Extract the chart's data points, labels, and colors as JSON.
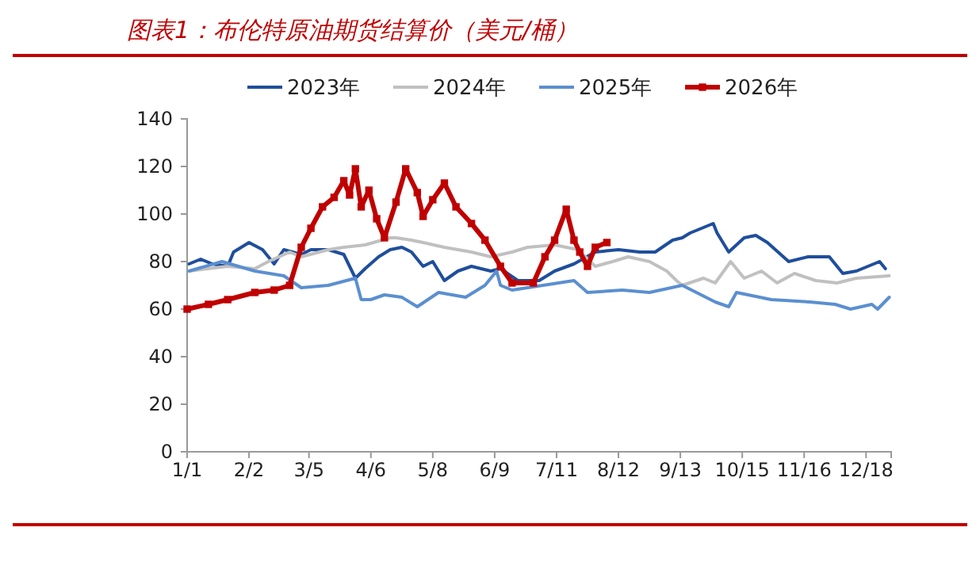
{
  "chart_data": {
    "type": "line",
    "title": "图表1：布伦特原油期货结算价（美元/桶）",
    "legend": "top",
    "grid": false,
    "xlim": [
      "--01-01",
      "--12-31"
    ],
    "xticks": [
      {
        "value": "--01-01",
        "label": "1/1"
      },
      {
        "value": "--02-02",
        "label": "2/2"
      },
      {
        "value": "--03-05",
        "label": "3/5"
      },
      {
        "value": "--04-06",
        "label": "4/6"
      },
      {
        "value": "--05-08",
        "label": "5/8"
      },
      {
        "value": "--06-09",
        "label": "6/9"
      },
      {
        "value": "--07-11",
        "label": "7/11"
      },
      {
        "value": "--08-12",
        "label": "8/12"
      },
      {
        "value": "--09-13",
        "label": "9/13"
      },
      {
        "value": "--10-15",
        "label": "10/15"
      },
      {
        "value": "--11-16",
        "label": "11/16"
      },
      {
        "value": "--12-18",
        "label": "12/18"
      }
    ],
    "ylim": [
      0,
      140
    ],
    "yticks": [
      0,
      20,
      40,
      60,
      80,
      100,
      120,
      140
    ],
    "series": [
      {
        "name": "2023年",
        "color": "#1f4e9c",
        "x": [
          "--01-02",
          "--01-08",
          "--01-14",
          "--01-22",
          "--01-25",
          "--02-02",
          "--02-09",
          "--02-15",
          "--02-20",
          "--03-01",
          "--03-06",
          "--03-15",
          "--03-23",
          "--03-29",
          "--04-03",
          "--04-10",
          "--04-16",
          "--04-22",
          "--04-27",
          "--05-03",
          "--05-08",
          "--05-14",
          "--05-21",
          "--05-28",
          "--06-07",
          "--06-12",
          "--06-21",
          "--07-02",
          "--07-10",
          "--07-20",
          "--07-31",
          "--08-12",
          "--08-23",
          "--08-31",
          "--09-09",
          "--09-14",
          "--09-18",
          "--09-30",
          "--10-02",
          "--10-08",
          "--10-16",
          "--10-22",
          "--10-28",
          "--11-08",
          "--11-18",
          "--11-29",
          "--12-06",
          "--12-13",
          "--12-25",
          "--12-28"
        ],
        "values": [
          79,
          81,
          79,
          78,
          84,
          88,
          85,
          79,
          85,
          83,
          85,
          85,
          83,
          73,
          77,
          82,
          85,
          86,
          84,
          78,
          80,
          72,
          76,
          78,
          76,
          77,
          72,
          72,
          76,
          79,
          84,
          85,
          84,
          84,
          89,
          90,
          92,
          96,
          92,
          84,
          90,
          91,
          88,
          80,
          82,
          82,
          75,
          76,
          80,
          77
        ]
      },
      {
        "name": "2024年",
        "color": "#c0c0c0",
        "x": [
          "--01-02",
          "--01-22",
          "--02-05",
          "--02-12",
          "--02-23",
          "--03-01",
          "--03-15",
          "--03-23",
          "--04-03",
          "--04-16",
          "--04-19",
          "--04-27",
          "--05-03",
          "--05-14",
          "--05-28",
          "--06-07",
          "--06-18",
          "--06-26",
          "--07-10",
          "--07-22",
          "--07-31",
          "--08-09",
          "--08-17",
          "--08-28",
          "--09-06",
          "--09-11",
          "--09-14",
          "--09-25",
          "--10-01",
          "--10-09",
          "--10-16",
          "--10-25",
          "--11-02",
          "--11-11",
          "--11-22",
          "--12-03",
          "--12-13",
          "--12-30"
        ],
        "values": [
          76,
          78,
          77,
          80,
          84,
          82,
          85,
          86,
          87,
          90,
          90,
          89,
          88,
          86,
          84,
          82,
          84,
          86,
          87,
          85,
          78,
          80,
          82,
          80,
          76,
          72,
          70,
          73,
          71,
          80,
          73,
          76,
          71,
          75,
          72,
          71,
          73,
          74
        ]
      },
      {
        "name": "2025年",
        "color": "#5b8fd0",
        "x": [
          "--01-02",
          "--01-19",
          "--02-05",
          "--02-20",
          "--03-01",
          "--03-15",
          "--03-29",
          "--04-01",
          "--04-06",
          "--04-13",
          "--04-22",
          "--04-30",
          "--05-11",
          "--05-25",
          "--06-04",
          "--06-10",
          "--06-12",
          "--06-18",
          "--07-04",
          "--07-20",
          "--07-27",
          "--08-14",
          "--08-28",
          "--09-14",
          "--10-01",
          "--10-08",
          "--10-12",
          "--10-30",
          "--11-19",
          "--12-02",
          "--12-10",
          "--12-21",
          "--12-24",
          "--12-30"
        ],
        "values": [
          76,
          80,
          76,
          74,
          69,
          70,
          73,
          64,
          64,
          66,
          65,
          61,
          67,
          65,
          70,
          76,
          70,
          68,
          70,
          72,
          67,
          68,
          67,
          70,
          63,
          61,
          67,
          64,
          63,
          62,
          60,
          62,
          60,
          65
        ]
      },
      {
        "name": "2026年",
        "color": "#c00000",
        "marker": "square",
        "x": [
          "--01-01",
          "--01-12",
          "--01-22",
          "--02-05",
          "--02-15",
          "--02-23",
          "--03-01",
          "--03-06",
          "--03-12",
          "--03-18",
          "--03-23",
          "--03-26",
          "--03-29",
          "--04-01",
          "--04-05",
          "--04-09",
          "--04-13",
          "--04-19",
          "--04-24",
          "--04-30",
          "--05-03",
          "--05-08",
          "--05-14",
          "--05-20",
          "--05-28",
          "--06-04",
          "--06-12",
          "--06-18",
          "--06-29",
          "--07-05",
          "--07-10",
          "--07-16",
          "--07-20",
          "--07-23",
          "--07-27",
          "--07-31",
          "--08-06"
        ],
        "values": [
          60,
          62,
          64,
          67,
          68,
          70,
          86,
          94,
          103,
          107,
          114,
          108,
          119,
          103,
          110,
          98,
          90,
          105,
          119,
          109,
          99,
          106,
          113,
          103,
          96,
          89,
          78,
          71,
          71,
          82,
          89,
          102,
          89,
          84,
          78,
          86,
          88
        ]
      }
    ]
  }
}
